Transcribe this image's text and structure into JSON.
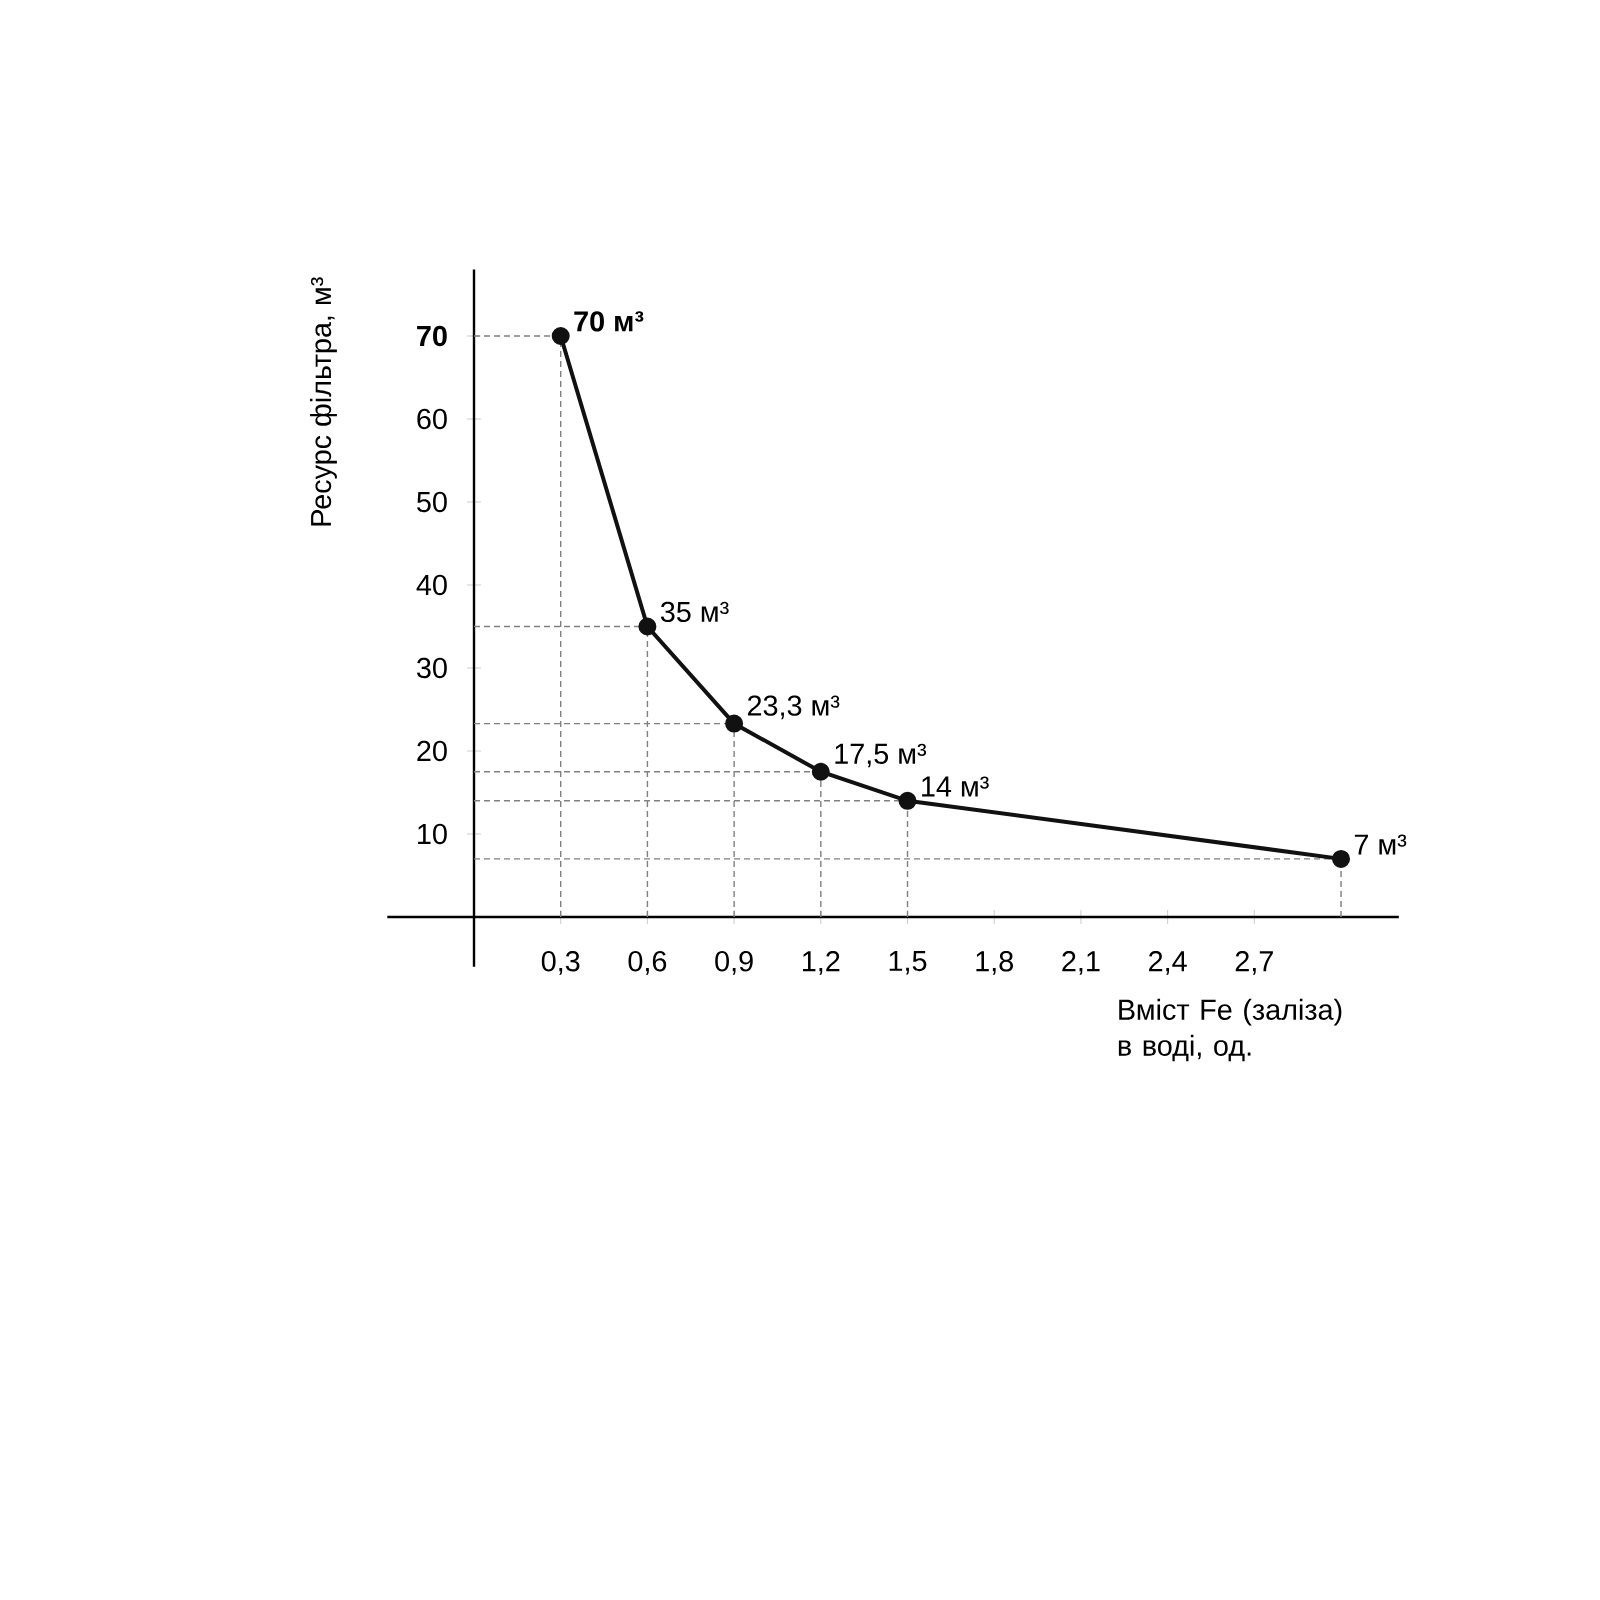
{
  "chart_data": {
    "type": "line",
    "xlabel": "Вміст Fe (заліза) в воді, од.",
    "ylabel": "Ресурс фільтра, м³",
    "x": [
      0.3,
      0.6,
      0.9,
      1.2,
      1.5,
      3.0
    ],
    "series": [
      {
        "color": "#111111",
        "values": [
          70,
          35,
          23.3,
          17.5,
          14,
          7
        ],
        "value_labels": [
          "**70 м³**",
          "35 м³",
          "23,3 м³",
          "17,5 м³",
          "14 м³",
          "7 м³"
        ]
      }
    ],
    "xlim": [
      -0.3,
      3.2
    ],
    "ylim": [
      -6,
      78
    ],
    "xticks": [
      {
        "value": 0.3,
        "label": "0,3"
      },
      {
        "value": 0.6,
        "label": "0,6"
      },
      {
        "value": 0.9,
        "label": "0,9"
      },
      {
        "value": 1.2,
        "label": "1,2"
      },
      {
        "value": 1.5,
        "label": "1,5"
      },
      {
        "value": 1.8,
        "label": "1,8"
      },
      {
        "value": 2.1,
        "label": "2,1"
      },
      {
        "value": 2.4,
        "label": "2,4"
      },
      {
        "value": 2.7,
        "label": "2,7"
      }
    ],
    "yticks": [
      10,
      20,
      30,
      40,
      50,
      60,
      {
        "value": 70,
        "label": "**70**"
      }
    ],
    "marker": "circle",
    "line_style": "solid"
  }
}
